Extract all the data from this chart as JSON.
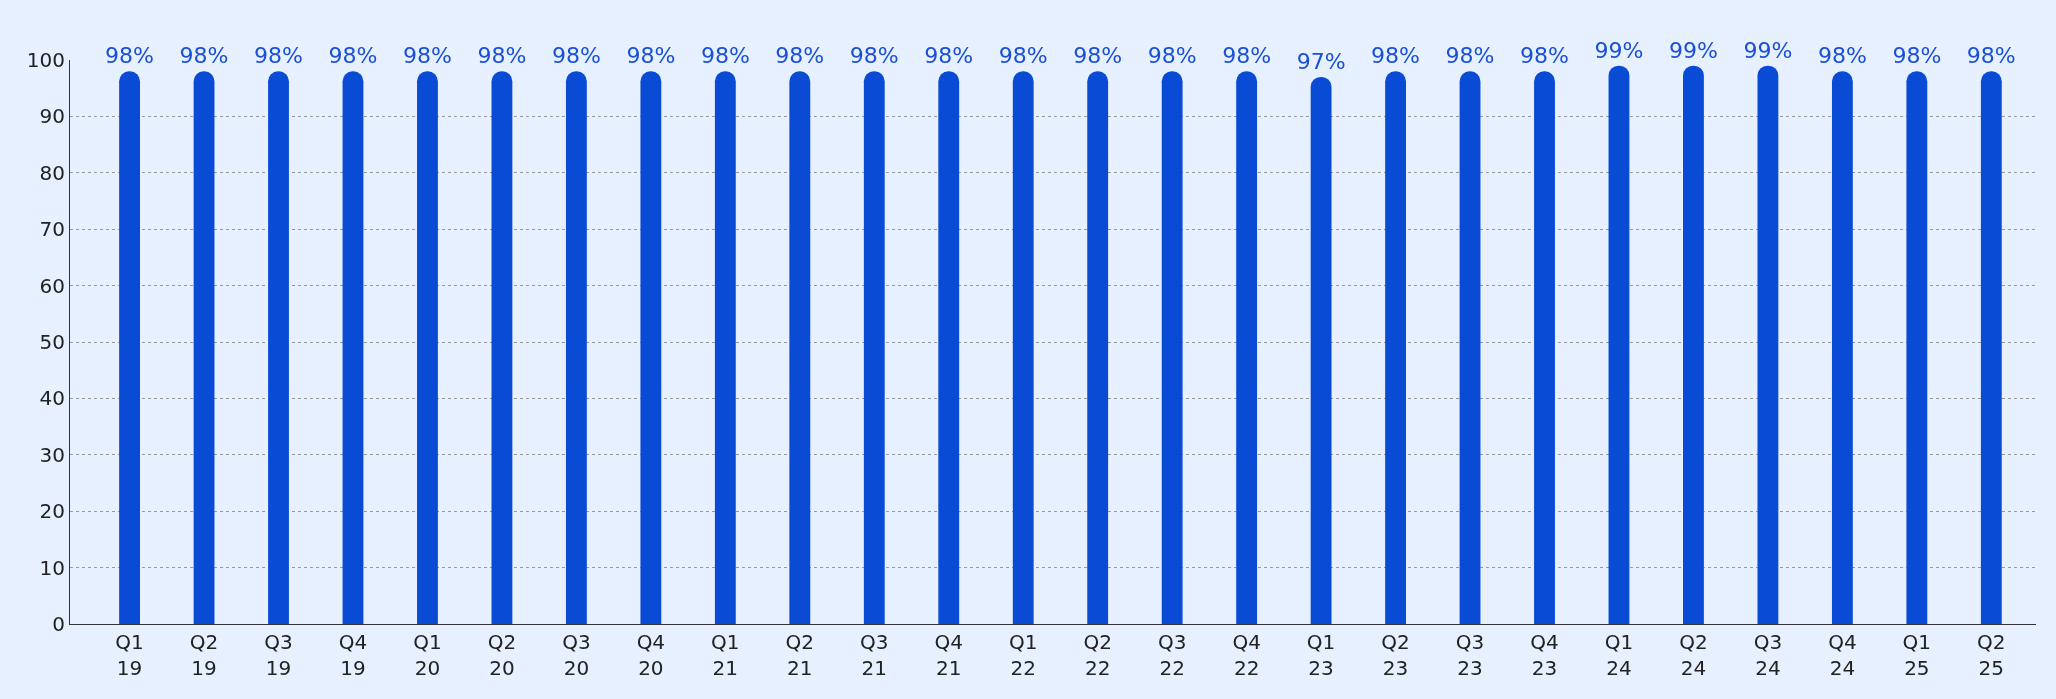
{
  "chart_data": {
    "type": "bar",
    "categories": [
      "Q1\n19",
      "Q2\n19",
      "Q3\n19",
      "Q4\n19",
      "Q1\n20",
      "Q2\n20",
      "Q3\n20",
      "Q4\n20",
      "Q1\n21",
      "Q2\n21",
      "Q3\n21",
      "Q4\n21",
      "Q1\n22",
      "Q2\n22",
      "Q3\n22",
      "Q4\n22",
      "Q1\n23",
      "Q2\n23",
      "Q3\n23",
      "Q4\n23",
      "Q1\n24",
      "Q2\n24",
      "Q3\n24",
      "Q4\n24",
      "Q1\n25",
      "Q2\n25"
    ],
    "values": [
      98,
      98,
      98,
      98,
      98,
      98,
      98,
      98,
      98,
      98,
      98,
      98,
      98,
      98,
      98,
      98,
      97,
      98,
      98,
      98,
      99,
      99,
      99,
      98,
      98,
      98
    ],
    "value_labels": [
      "98%",
      "98%",
      "98%",
      "98%",
      "98%",
      "98%",
      "98%",
      "98%",
      "98%",
      "98%",
      "98%",
      "98%",
      "98%",
      "98%",
      "98%",
      "98%",
      "97%",
      "98%",
      "98%",
      "98%",
      "99%",
      "99%",
      "99%",
      "98%",
      "98%",
      "98%"
    ],
    "color": "#0a4bd6",
    "ylim": [
      0,
      100
    ],
    "yticks": [
      0,
      10,
      20,
      30,
      40,
      50,
      60,
      70,
      80,
      90,
      100
    ],
    "grid": "y"
  }
}
